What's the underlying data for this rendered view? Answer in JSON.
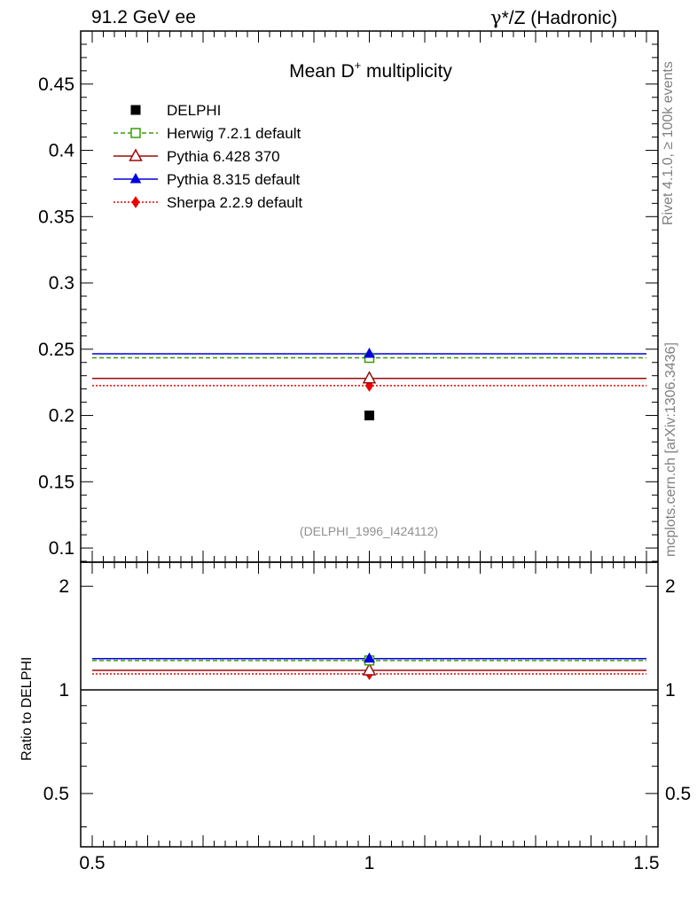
{
  "header": {
    "left": "91.2 GeV ee",
    "right_gamma": "γ",
    "right_rest": "*/Z (Hadronic)"
  },
  "side_labels": {
    "rivet": "Rivet 4.1.0, ≥ 100k events",
    "mcplots": "mcplots.cern.ch [arXiv:1306.3436]"
  },
  "colors": {
    "delphi": "#000000",
    "herwig": "#3a9c08",
    "pythia6": "#9a0a0a",
    "pythia8": "#0000dd",
    "sherpa": "#ee0000",
    "watermark": "#909090"
  },
  "chart_data": {
    "type": "scatter",
    "title_main": "Mean D",
    "title_sup": "+",
    "title_rest": " multiplicity",
    "analysis_id": "(DELPHI_1996_I424112)",
    "xlim": [
      0.5,
      1.5
    ],
    "x_ticks": [
      "0.5",
      "1",
      "1.5"
    ],
    "x_tick_values": [
      0.5,
      1,
      1.5
    ],
    "main": {
      "ylim": [
        0.09,
        0.49
      ],
      "y_ticks": [
        "0.1",
        "0.15",
        "0.2",
        "0.25",
        "0.3",
        "0.35",
        "0.4",
        "0.45"
      ],
      "y_tick_values": [
        0.1,
        0.15,
        0.2,
        0.25,
        0.3,
        0.35,
        0.4,
        0.45
      ]
    },
    "ratio": {
      "ylabel": "Ratio to DELPHI",
      "ylim": [
        0.35,
        2.35
      ],
      "y_ticks": [
        "0.5",
        "1",
        "2"
      ],
      "y_tick_values": [
        0.5,
        1,
        2
      ]
    },
    "data": {
      "name": "DELPHI",
      "x": 1,
      "y": 0.2
    },
    "series": [
      {
        "key": "herwig",
        "name": "Herwig 7.2.1 default",
        "value": 0.2435,
        "ratio": 1.2175,
        "marker": "open-square",
        "style": "dashed"
      },
      {
        "key": "pythia6",
        "name": "Pythia 6.428 370",
        "value": 0.228,
        "ratio": 1.14,
        "marker": "open-triangle",
        "style": "solid"
      },
      {
        "key": "pythia8",
        "name": "Pythia 8.315 default",
        "value": 0.2465,
        "ratio": 1.2325,
        "marker": "filled-triangle",
        "style": "solid"
      },
      {
        "key": "sherpa",
        "name": "Sherpa 2.2.9 default",
        "value": 0.2225,
        "ratio": 1.1125,
        "marker": "filled-diamond",
        "style": "dotted"
      }
    ]
  }
}
